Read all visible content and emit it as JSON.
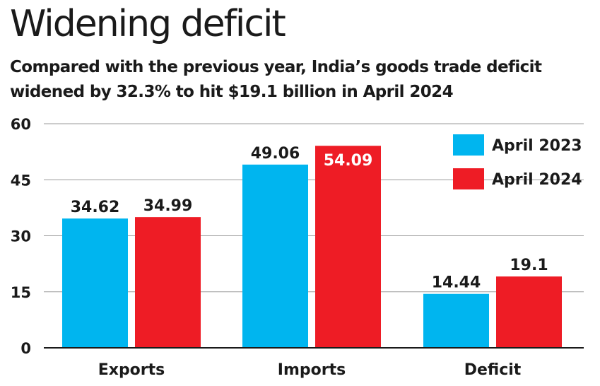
{
  "chart_data": {
    "type": "bar",
    "title": "Widening deficit",
    "subtitle": "Compared with the previous year, India’s goods trade deficit widened by 32.3% to hit $19.1 billion in April 2024",
    "categories": [
      "Exports",
      "Imports",
      "Deficit"
    ],
    "series": [
      {
        "name": "April 2023",
        "color": "#00b5ef",
        "values": [
          34.62,
          49.06,
          14.44
        ],
        "labels": [
          "34.62",
          "49.06",
          "14.44"
        ]
      },
      {
        "name": "April 2024",
        "color": "#ee1c25",
        "values": [
          34.99,
          54.09,
          19.1
        ],
        "labels": [
          "34.99",
          "54.09",
          "19.1"
        ]
      }
    ],
    "yticks": [
      0,
      15,
      30,
      45,
      60
    ],
    "ylim": [
      0,
      60
    ],
    "xlabel": "",
    "ylabel": "",
    "grid": true,
    "legend_position": "top-right"
  }
}
